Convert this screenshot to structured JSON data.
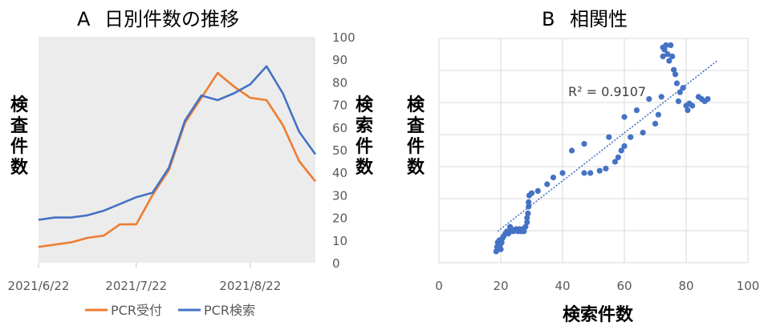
{
  "chart_data": [
    {
      "type": "line",
      "title": "A 日別件数の推移",
      "x_tick_labels": [
        "2021/6/22",
        "2021/7/22",
        "2021/8/22"
      ],
      "ylabel": "検査件数",
      "y2label": "検索件数",
      "y2lim": [
        0,
        100
      ],
      "y2_ticks": [
        "0",
        "10",
        "20",
        "30",
        "40",
        "50",
        "60",
        "70",
        "80",
        "90",
        "100"
      ],
      "grid": "none",
      "legend_position": "bottom",
      "x": [
        "2021/6/22",
        "2021/6/27",
        "2021/7/2",
        "2021/7/7",
        "2021/7/12",
        "2021/7/17",
        "2021/7/22",
        "2021/7/27",
        "2021/8/1",
        "2021/8/5",
        "2021/8/9",
        "2021/8/13",
        "2021/8/17",
        "2021/8/22",
        "2021/8/26",
        "2021/8/31",
        "2021/9/4",
        "2021/9/7"
      ],
      "series": [
        {
          "name": "PCR受付",
          "color": "#ED7D31",
          "values": [
            7,
            8,
            9,
            11,
            12,
            17,
            17,
            30,
            41,
            62,
            73,
            84,
            78,
            73,
            72,
            61,
            45,
            36
          ]
        },
        {
          "name": "PCR検索",
          "color": "#4472C4",
          "values": [
            19,
            20,
            20,
            21,
            23,
            26,
            29,
            31,
            42,
            63,
            74,
            72,
            75,
            79,
            87,
            75,
            58,
            48
          ]
        }
      ]
    },
    {
      "type": "scatter",
      "title": "B 相関性",
      "xlabel": "検索件数",
      "ylabel": "検査件数",
      "xlim": [
        0,
        100
      ],
      "x_ticks": [
        "0",
        "20",
        "40",
        "60",
        "80",
        "100"
      ],
      "grid": "vertical-and-horizontal",
      "color": "#4472C4",
      "trendline": {
        "label": "R² = 0.9107",
        "from": [
          19,
          14
        ],
        "to": [
          90,
          90
        ]
      },
      "points": [
        [
          18.5,
          5
        ],
        [
          18.8,
          7
        ],
        [
          19,
          9
        ],
        [
          19.2,
          6
        ],
        [
          19.5,
          10
        ],
        [
          19.8,
          8
        ],
        [
          20,
          6
        ],
        [
          20.3,
          9
        ],
        [
          20.6,
          11
        ],
        [
          21,
          12
        ],
        [
          21.5,
          13
        ],
        [
          22,
          14
        ],
        [
          22.5,
          13
        ],
        [
          23,
          16
        ],
        [
          23.5,
          15
        ],
        [
          24,
          14
        ],
        [
          25,
          15
        ],
        [
          25.5,
          14
        ],
        [
          26,
          15
        ],
        [
          26.5,
          14
        ],
        [
          27,
          15
        ],
        [
          27.5,
          14
        ],
        [
          28,
          16
        ],
        [
          28.5,
          18
        ],
        [
          28.5,
          20
        ],
        [
          28.8,
          22
        ],
        [
          29,
          25
        ],
        [
          29,
          27
        ],
        [
          29.2,
          30
        ],
        [
          30,
          31
        ],
        [
          32,
          32
        ],
        [
          35,
          35
        ],
        [
          37,
          38
        ],
        [
          40,
          40
        ],
        [
          43,
          50
        ],
        [
          47,
          53
        ],
        [
          47,
          40
        ],
        [
          49,
          40
        ],
        [
          52,
          41
        ],
        [
          54,
          42
        ],
        [
          55,
          56
        ],
        [
          57,
          45
        ],
        [
          58,
          47
        ],
        [
          59,
          50
        ],
        [
          60,
          52
        ],
        [
          60,
          65
        ],
        [
          62,
          56
        ],
        [
          64,
          68
        ],
        [
          66,
          58
        ],
        [
          68,
          73
        ],
        [
          70,
          62
        ],
        [
          71,
          66
        ],
        [
          72,
          74
        ],
        [
          72.5,
          92
        ],
        [
          72.5,
          96
        ],
        [
          73,
          95
        ],
        [
          73.5,
          97
        ],
        [
          74,
          93
        ],
        [
          74.5,
          90
        ],
        [
          75,
          97
        ],
        [
          75.5,
          92
        ],
        [
          76,
          86
        ],
        [
          76.5,
          84
        ],
        [
          77,
          80
        ],
        [
          77.5,
          72
        ],
        [
          78,
          76
        ],
        [
          79,
          78
        ],
        [
          80,
          70
        ],
        [
          80.5,
          68
        ],
        [
          81,
          71
        ],
        [
          82,
          70
        ],
        [
          84,
          74
        ],
        [
          85,
          73
        ],
        [
          86,
          72
        ],
        [
          87,
          73
        ]
      ]
    }
  ],
  "legend_entries": [
    "PCR受付",
    "PCR検索"
  ],
  "panel_a_label": "A",
  "panel_a_title": "日別件数の推移",
  "panel_b_label": "B",
  "panel_b_title": "相関性"
}
